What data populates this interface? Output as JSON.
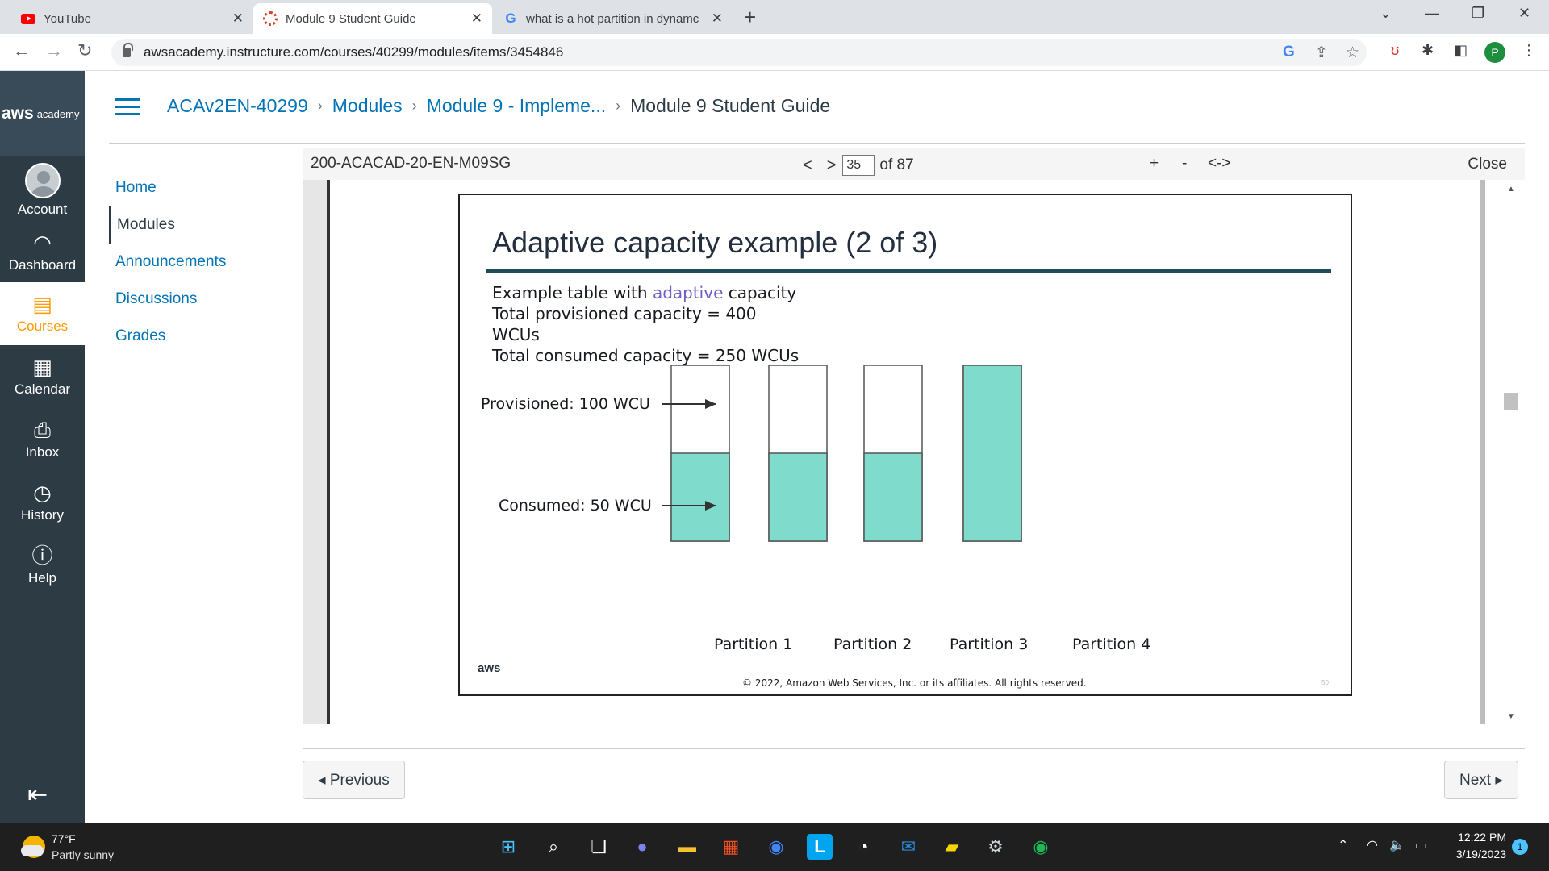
{
  "browser": {
    "tabs": [
      {
        "title": "YouTube",
        "icon": "youtube-icon"
      },
      {
        "title": "Module 9 Student Guide",
        "icon": "canvas-icon"
      },
      {
        "title": "what is a hot partition in dynamc",
        "icon": "google-icon"
      }
    ],
    "new_tab": "+",
    "url": "awsacademy.instructure.com/courses/40299/modules/items/3454846",
    "profile_initial": "P"
  },
  "global_nav": {
    "logo_brand": "aws",
    "logo_sub": "academy",
    "items": [
      {
        "label": "Account",
        "icon": "avatar-icon"
      },
      {
        "label": "Dashboard",
        "icon": "dashboard-icon"
      },
      {
        "label": "Courses",
        "icon": "book-icon"
      },
      {
        "label": "Calendar",
        "icon": "calendar-icon"
      },
      {
        "label": "Inbox",
        "icon": "inbox-icon"
      },
      {
        "label": "History",
        "icon": "clock-icon"
      },
      {
        "label": "Help",
        "icon": "help-icon"
      }
    ]
  },
  "breadcrumb": {
    "course": "ACAv2EN-40299",
    "modules": "Modules",
    "module": "Module 9 - Impleme...",
    "current": "Module 9 Student Guide"
  },
  "course_nav": [
    "Home",
    "Modules",
    "Announcements",
    "Discussions",
    "Grades"
  ],
  "viewer": {
    "doc_id": "200-ACACAD-20-EN-M09SG",
    "prev": "<",
    "next": ">",
    "page": "35",
    "of_pages": "of 87",
    "zoom_in": "+",
    "zoom_out": "-",
    "fit": "<->",
    "close": "Close"
  },
  "slide": {
    "title": "Adaptive capacity example (2 of 3)",
    "line1_pre": "Example table with ",
    "line1_hl": "adaptive",
    "line1_post": " capacity",
    "line2": "Total provisioned capacity = 400",
    "line3": "WCUs",
    "line4": "Total consumed capacity = 250 WCUs",
    "aws_logo": "aws",
    "copyright": "© 2022, Amazon Web Services, Inc. or its affiliates. All rights reserved.",
    "page_num": "50"
  },
  "chart_data": {
    "type": "bar",
    "categories": [
      "Partition 1",
      "Partition 2",
      "Partition 3",
      "Partition 4"
    ],
    "provisioned": [
      100,
      100,
      100,
      100
    ],
    "consumed": [
      50,
      50,
      50,
      100
    ],
    "annotations": [
      "Provisioned: 100 WCU",
      "Consumed: 50 WCU"
    ],
    "colors": {
      "consumed": "#7fdbcc",
      "provisioned": "#ffffff",
      "outline": "#555555"
    }
  },
  "footer": {
    "previous": "◂ Previous",
    "next": "Next ▸"
  },
  "taskbar": {
    "temp": "77°F",
    "weather": "Partly sunny",
    "time": "12:22 PM",
    "date": "3/19/2023",
    "notifications": "1"
  }
}
